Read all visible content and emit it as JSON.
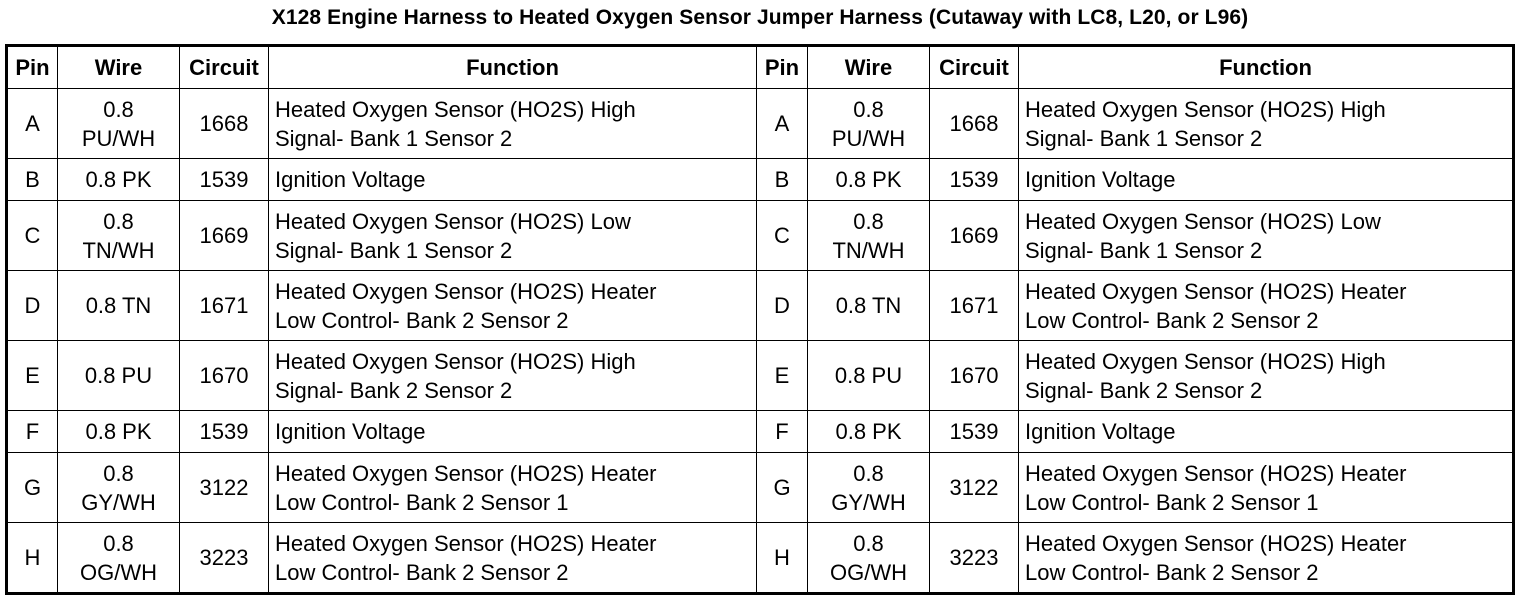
{
  "title": "X128 Engine Harness to Heated Oxygen Sensor Jumper Harness (Cutaway with LC8, L20, or L96)",
  "columns": [
    "Pin",
    "Wire",
    "Circuit",
    "Function"
  ],
  "left_rows": [
    {
      "pin": "A",
      "wire": [
        "0.8",
        "PU/WH"
      ],
      "circuit": "1668",
      "function": [
        "Heated Oxygen Sensor (HO2S) High",
        "Signal- Bank 1 Sensor 2"
      ]
    },
    {
      "pin": "B",
      "wire": [
        "0.8 PK"
      ],
      "circuit": "1539",
      "function": [
        "Ignition Voltage"
      ]
    },
    {
      "pin": "C",
      "wire": [
        "0.8",
        "TN/WH"
      ],
      "circuit": "1669",
      "function": [
        "Heated Oxygen Sensor (HO2S) Low",
        "Signal- Bank 1 Sensor 2"
      ]
    },
    {
      "pin": "D",
      "wire": [
        "0.8 TN"
      ],
      "circuit": "1671",
      "function": [
        "Heated Oxygen Sensor (HO2S) Heater",
        "Low Control- Bank 2 Sensor 2"
      ]
    },
    {
      "pin": "E",
      "wire": [
        "0.8 PU"
      ],
      "circuit": "1670",
      "function": [
        "Heated Oxygen Sensor (HO2S) High",
        "Signal- Bank 2 Sensor 2"
      ]
    },
    {
      "pin": "F",
      "wire": [
        "0.8 PK"
      ],
      "circuit": "1539",
      "function": [
        "Ignition Voltage"
      ]
    },
    {
      "pin": "G",
      "wire": [
        "0.8",
        "GY/WH"
      ],
      "circuit": "3122",
      "function": [
        "Heated Oxygen Sensor (HO2S) Heater",
        "Low Control- Bank 2 Sensor 1"
      ]
    },
    {
      "pin": "H",
      "wire": [
        "0.8",
        "OG/WH"
      ],
      "circuit": "3223",
      "function": [
        "Heated Oxygen Sensor (HO2S) Heater",
        "Low Control- Bank 2 Sensor 2"
      ]
    }
  ],
  "right_rows": [
    {
      "pin": "A",
      "wire": [
        "0.8",
        "PU/WH"
      ],
      "circuit": "1668",
      "function": [
        "Heated Oxygen Sensor (HO2S) High",
        "Signal- Bank 1 Sensor 2"
      ]
    },
    {
      "pin": "B",
      "wire": [
        "0.8 PK"
      ],
      "circuit": "1539",
      "function": [
        "Ignition Voltage"
      ]
    },
    {
      "pin": "C",
      "wire": [
        "0.8",
        "TN/WH"
      ],
      "circuit": "1669",
      "function": [
        "Heated Oxygen Sensor (HO2S) Low",
        "Signal- Bank 1 Sensor 2"
      ]
    },
    {
      "pin": "D",
      "wire": [
        "0.8 TN"
      ],
      "circuit": "1671",
      "function": [
        "Heated Oxygen Sensor (HO2S) Heater",
        "Low Control- Bank 2 Sensor 2"
      ]
    },
    {
      "pin": "E",
      "wire": [
        "0.8 PU"
      ],
      "circuit": "1670",
      "function": [
        "Heated Oxygen Sensor (HO2S) High",
        "Signal- Bank 2 Sensor 2"
      ]
    },
    {
      "pin": "F",
      "wire": [
        "0.8 PK"
      ],
      "circuit": "1539",
      "function": [
        "Ignition Voltage"
      ]
    },
    {
      "pin": "G",
      "wire": [
        "0.8",
        "GY/WH"
      ],
      "circuit": "3122",
      "function": [
        "Heated Oxygen Sensor (HO2S) Heater",
        "Low Control- Bank 2 Sensor 1"
      ]
    },
    {
      "pin": "H",
      "wire": [
        "0.8",
        "OG/WH"
      ],
      "circuit": "3223",
      "function": [
        "Heated Oxygen Sensor (HO2S) Heater",
        "Low Control- Bank 2 Sensor 2"
      ]
    }
  ]
}
